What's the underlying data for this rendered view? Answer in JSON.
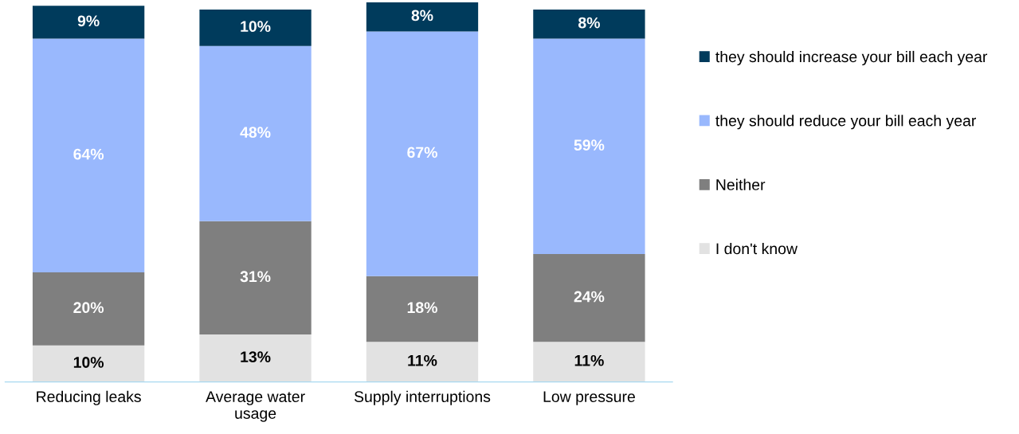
{
  "chart_data": {
    "type": "bar",
    "stacked": true,
    "legend": "right",
    "grid": false,
    "categories": [
      "Reducing leaks",
      "Average water\nusage",
      "Supply interruptions",
      "Low pressure"
    ],
    "series": [
      {
        "name": "I don't know",
        "color": "#e2e2e2",
        "values": [
          10,
          13,
          11,
          11
        ],
        "value_labels": [
          "10%",
          "13%",
          "11%",
          "11%"
        ]
      },
      {
        "name": "Neither",
        "color": "#7f7f7f",
        "values": [
          20,
          31,
          18,
          24
        ],
        "value_labels": [
          "20%",
          "31%",
          "18%",
          "24%"
        ]
      },
      {
        "name": "they should reduce your bill each year",
        "color": "#99b8fd",
        "values": [
          64,
          48,
          67,
          59
        ],
        "value_labels": [
          "64%",
          "48%",
          "67%",
          "59%"
        ]
      },
      {
        "name": "they should increase your bill each year",
        "color": "#003b5c",
        "values": [
          9,
          10,
          8,
          8
        ],
        "value_labels": [
          "9%",
          "10%",
          "8%",
          "8%"
        ]
      }
    ]
  }
}
